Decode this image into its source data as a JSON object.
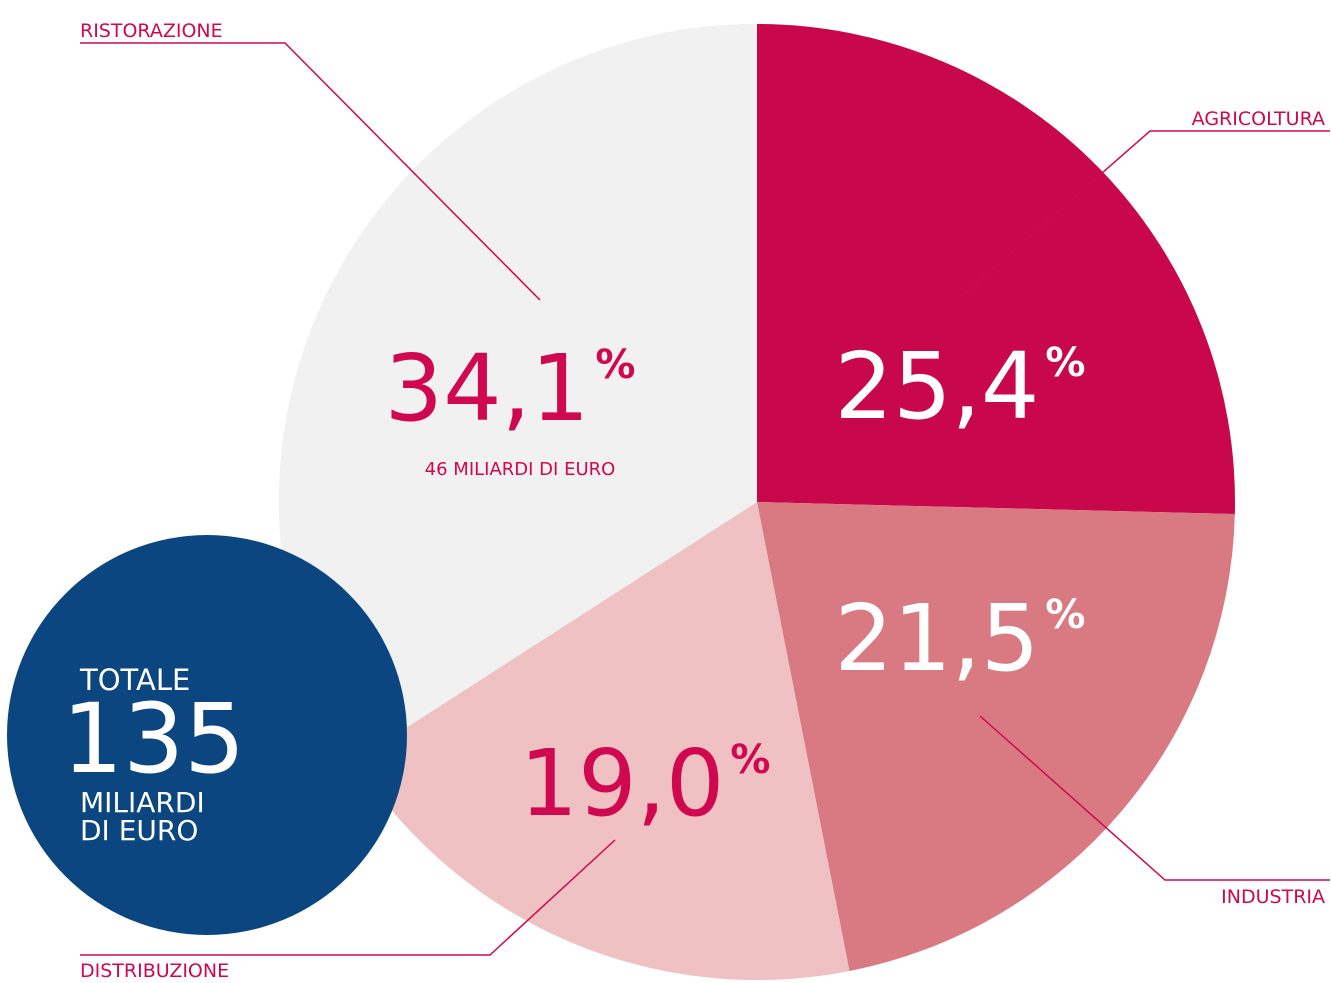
{
  "chart_data": {
    "type": "pie",
    "categories": [
      "AGRICOLTURA",
      "INDUSTRIA",
      "DISTRIBUZIONE",
      "RISTORAZIONE"
    ],
    "values": [
      25.4,
      21.5,
      19.0,
      34.1
    ],
    "value_labels": [
      "25,4",
      "21,5",
      "19,0",
      "34,1"
    ],
    "unit": "%",
    "colors": [
      "#c8084a",
      "#d97a83",
      "#efc1c3",
      "#f1f1f1"
    ],
    "label_colors": [
      "#ffffff",
      "#ffffff",
      "#d0084f",
      "#d0084f"
    ],
    "annotations": {
      "ristorazione_amount": "46 MILIARDI DI EURO",
      "total_label": "TOTALE",
      "total_value": "135",
      "total_unit_1": "MILIARDI",
      "total_unit_2": "DI EURO"
    }
  }
}
